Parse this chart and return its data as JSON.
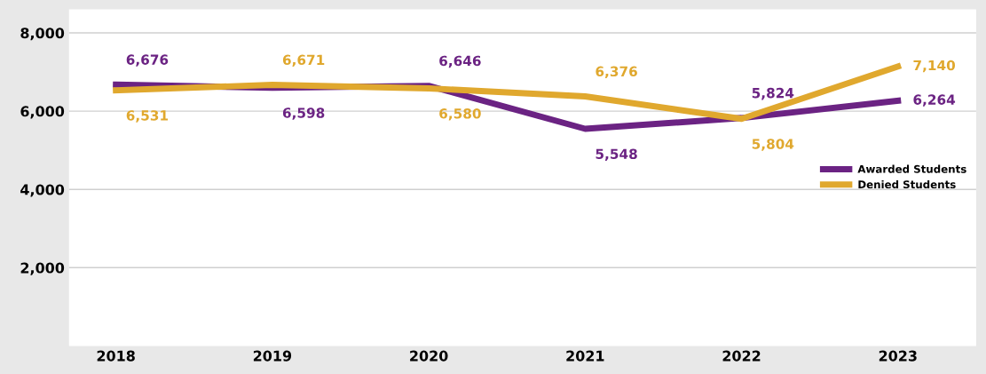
{
  "chart_data": {
    "type": "line",
    "categories": [
      "2018",
      "2019",
      "2020",
      "2021",
      "2022",
      "2023"
    ],
    "series": [
      {
        "name": "Awarded Students",
        "color": "#6b2383",
        "values": [
          6676,
          6598,
          6646,
          5548,
          5824,
          6264
        ],
        "value_labels": [
          "6,676",
          "6,598",
          "6,646",
          "5,548",
          "5,824",
          "6,264"
        ]
      },
      {
        "name": "Denied Students",
        "color": "#e0a82e",
        "values": [
          6531,
          6671,
          6580,
          6376,
          5804,
          7140
        ],
        "value_labels": [
          "6,531",
          "6,671",
          "6,580",
          "6,376",
          "5,804",
          "7,140"
        ]
      }
    ],
    "ylim": [
      0,
      8600
    ],
    "yticks": [
      {
        "value": 2000,
        "label": "2,000"
      },
      {
        "value": 4000,
        "label": "4,000"
      },
      {
        "value": 6000,
        "label": "6,000"
      },
      {
        "value": 8000,
        "label": "8,000"
      }
    ],
    "grid": "y",
    "legend": "right",
    "marker": "none",
    "line_style": "solid"
  }
}
